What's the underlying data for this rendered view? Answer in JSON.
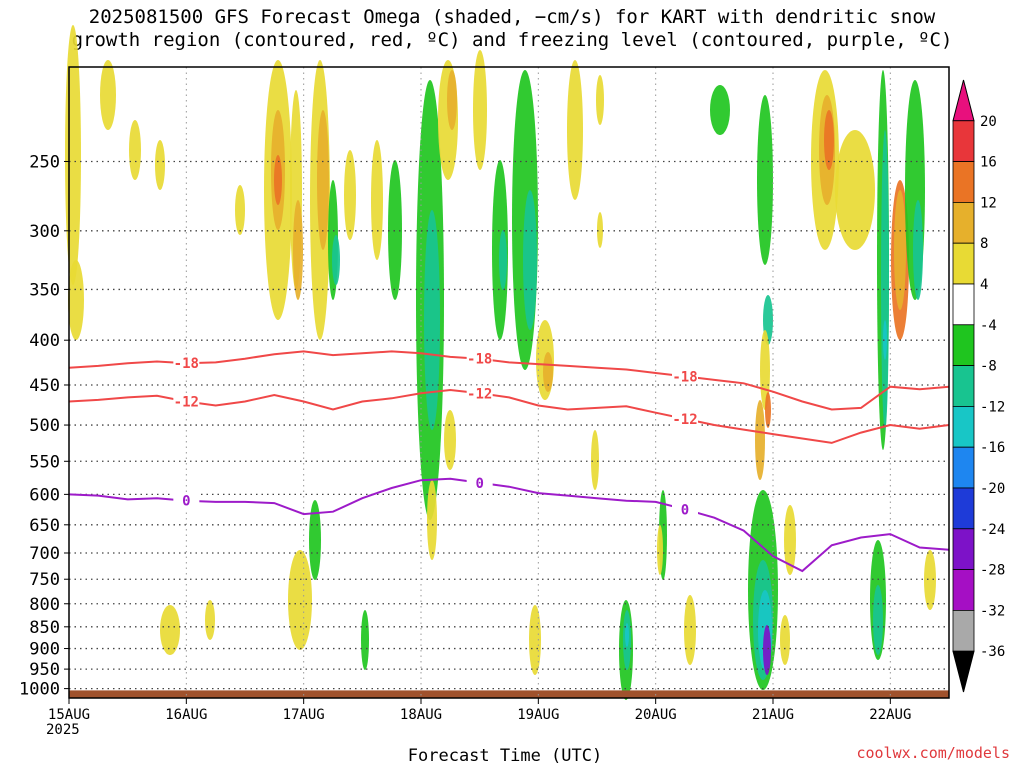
{
  "title": "2025081500 GFS Forecast Omega (shaded, −cm/s) for KART with dendritic snow\ngrowth region (contoured, red, ºC) and freezing level (contoured, purple, ºC)",
  "credit": "coolwx.com/models",
  "chart_data": {
    "type": "heatmap",
    "title": "2025081500 GFS Forecast Omega (shaded, −cm/s) for KART with dendritic snow growth region (contoured, red, ºC) and freezing level (contoured, purple, ºC)",
    "xlabel": "Forecast Time (UTC)",
    "ylabel": "",
    "x_ticks": [
      "15AUG",
      "16AUG",
      "17AUG",
      "18AUG",
      "19AUG",
      "20AUG",
      "21AUG",
      "22AUG"
    ],
    "x_year_label": "2025",
    "xlim_hours": [
      0,
      180
    ],
    "y_ticks": [
      250,
      300,
      350,
      400,
      450,
      500,
      550,
      600,
      650,
      700,
      750,
      800,
      850,
      900,
      950,
      1000
    ],
    "ylim": [
      1025,
      195
    ],
    "y_scale": "log-pressure",
    "grid": true,
    "colorbar": {
      "labels": [
        20,
        16,
        12,
        8,
        4,
        -4,
        -8,
        -12,
        -16,
        -20,
        -24,
        -28,
        -32,
        -36
      ],
      "colors": [
        "#e8107d",
        "#e8363a",
        "#ea7425",
        "#e6b02c",
        "#e8da34",
        "#ffffff",
        "#1fc51f",
        "#18c490",
        "#18c6c6",
        "#1e86f0",
        "#1e3bd8",
        "#7d12c8",
        "#a50fc4",
        "#a9a9a9",
        "#000000"
      ]
    },
    "contours": [
      {
        "level": -18,
        "color": "#f04848",
        "label": "-18",
        "hours": [
          0,
          6,
          12,
          18,
          24,
          30,
          36,
          42,
          48,
          54,
          60,
          66,
          72,
          78,
          84,
          90,
          96,
          102,
          108,
          114,
          120,
          126,
          132,
          138,
          144,
          150,
          156,
          162,
          168,
          174,
          180
        ],
        "pressure": [
          430,
          428,
          425,
          423,
          425,
          424,
          420,
          415,
          412,
          416,
          414,
          412,
          414,
          418,
          420,
          424,
          426,
          428,
          430,
          432,
          436,
          440,
          444,
          448,
          458,
          470,
          480,
          478,
          452,
          455,
          452
        ]
      },
      {
        "level": -12,
        "color": "#f04848",
        "label": "-12",
        "hours": [
          0,
          6,
          12,
          18,
          24,
          30,
          36,
          42,
          48,
          54,
          60,
          66,
          72,
          78,
          84,
          90,
          96,
          102,
          108,
          114,
          120,
          126,
          132,
          138,
          144,
          150,
          156,
          162,
          168,
          174,
          180
        ],
        "pressure": [
          470,
          468,
          465,
          463,
          470,
          475,
          470,
          462,
          470,
          480,
          470,
          466,
          460,
          456,
          460,
          465,
          475,
          480,
          478,
          476,
          484,
          492,
          500,
          506,
          512,
          518,
          524,
          510,
          500,
          505,
          500
        ]
      },
      {
        "level": 0,
        "color": "#9d1bc9",
        "label": "0",
        "hours": [
          0,
          6,
          12,
          18,
          24,
          30,
          36,
          42,
          48,
          54,
          60,
          66,
          72,
          78,
          84,
          90,
          96,
          102,
          108,
          114,
          120,
          126,
          132,
          138,
          144,
          150,
          156,
          162,
          168,
          174,
          180
        ],
        "pressure": [
          600,
          602,
          608,
          606,
          610,
          612,
          612,
          614,
          632,
          628,
          606,
          590,
          578,
          576,
          582,
          588,
          598,
          602,
          606,
          610,
          612,
          624,
          638,
          660,
          706,
          734,
          686,
          672,
          666,
          690,
          694
        ]
      }
    ]
  }
}
